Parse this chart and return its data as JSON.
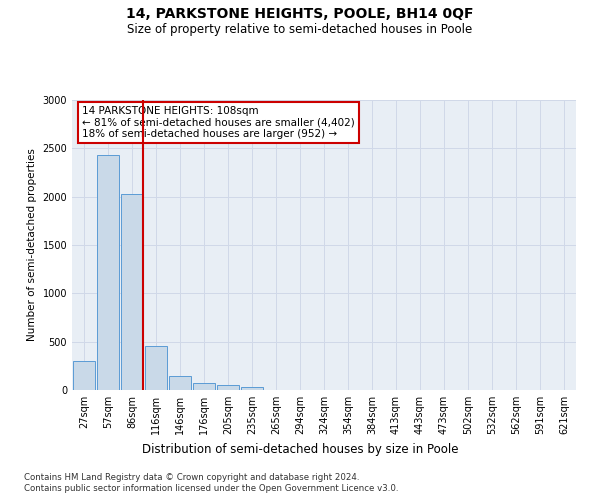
{
  "title1": "14, PARKSTONE HEIGHTS, POOLE, BH14 0QF",
  "title2": "Size of property relative to semi-detached houses in Poole",
  "xlabel": "Distribution of semi-detached houses by size in Poole",
  "ylabel": "Number of semi-detached properties",
  "categories": [
    "27sqm",
    "57sqm",
    "86sqm",
    "116sqm",
    "146sqm",
    "176sqm",
    "205sqm",
    "235sqm",
    "265sqm",
    "294sqm",
    "324sqm",
    "354sqm",
    "384sqm",
    "413sqm",
    "443sqm",
    "473sqm",
    "502sqm",
    "532sqm",
    "562sqm",
    "591sqm",
    "621sqm"
  ],
  "values": [
    300,
    2430,
    2030,
    460,
    145,
    75,
    50,
    30,
    5,
    2,
    1,
    1,
    0,
    0,
    0,
    0,
    0,
    0,
    0,
    0,
    0
  ],
  "bar_color": "#c9d9e8",
  "bar_edge_color": "#5b9bd5",
  "property_line_bar_index": 2,
  "annotation_title": "14 PARKSTONE HEIGHTS: 108sqm",
  "annotation_line1": "← 81% of semi-detached houses are smaller (4,402)",
  "annotation_line2": "18% of semi-detached houses are larger (952) →",
  "annotation_box_facecolor": "#ffffff",
  "annotation_box_edgecolor": "#cc0000",
  "property_line_color": "#cc0000",
  "ylim": [
    0,
    3000
  ],
  "yticks": [
    0,
    500,
    1000,
    1500,
    2000,
    2500,
    3000
  ],
  "footer1": "Contains HM Land Registry data © Crown copyright and database right 2024.",
  "footer2": "Contains public sector information licensed under the Open Government Licence v3.0.",
  "grid_color": "#d0d8e8",
  "background_color": "#e8eef5"
}
